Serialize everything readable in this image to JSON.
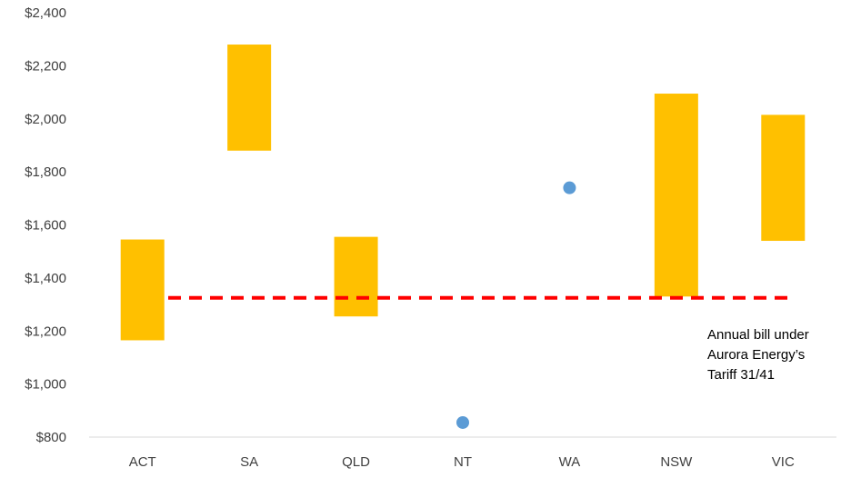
{
  "chart_data": {
    "type": "bar",
    "title": "",
    "xlabel": "",
    "ylabel": "",
    "ylim": [
      800,
      2400
    ],
    "y_ticks": [
      800,
      1000,
      1200,
      1400,
      1600,
      1800,
      2000,
      2200,
      2400
    ],
    "y_tick_labels": [
      "$800",
      "$1,000",
      "$1,200",
      "$1,400",
      "$1,600",
      "$1,800",
      "$2,000",
      "$2,200",
      "$2,400"
    ],
    "categories": [
      "ACT",
      "SA",
      "QLD",
      "NT",
      "WA",
      "NSW",
      "VIC"
    ],
    "ranges": [
      {
        "category": "ACT",
        "low": 1165,
        "high": 1545
      },
      {
        "category": "SA",
        "low": 1880,
        "high": 2280
      },
      {
        "category": "QLD",
        "low": 1255,
        "high": 1555
      },
      {
        "category": "NSW",
        "low": 1330,
        "high": 2095
      },
      {
        "category": "VIC",
        "low": 1540,
        "high": 2015
      }
    ],
    "points": [
      {
        "category": "NT",
        "value": 855
      },
      {
        "category": "WA",
        "value": 1740
      }
    ],
    "reference_line": {
      "value": 1325,
      "label_lines": [
        "Annual bill under",
        "Aurora Energy’s",
        "Tariff 31/41"
      ]
    },
    "grid": false,
    "legend": "none",
    "colors": {
      "range_fill": "#FFC000",
      "point_fill": "#5B9BD5",
      "reference_line": "#FF0000",
      "axis": "#D9D9D9",
      "tick_text": "#404040"
    }
  }
}
